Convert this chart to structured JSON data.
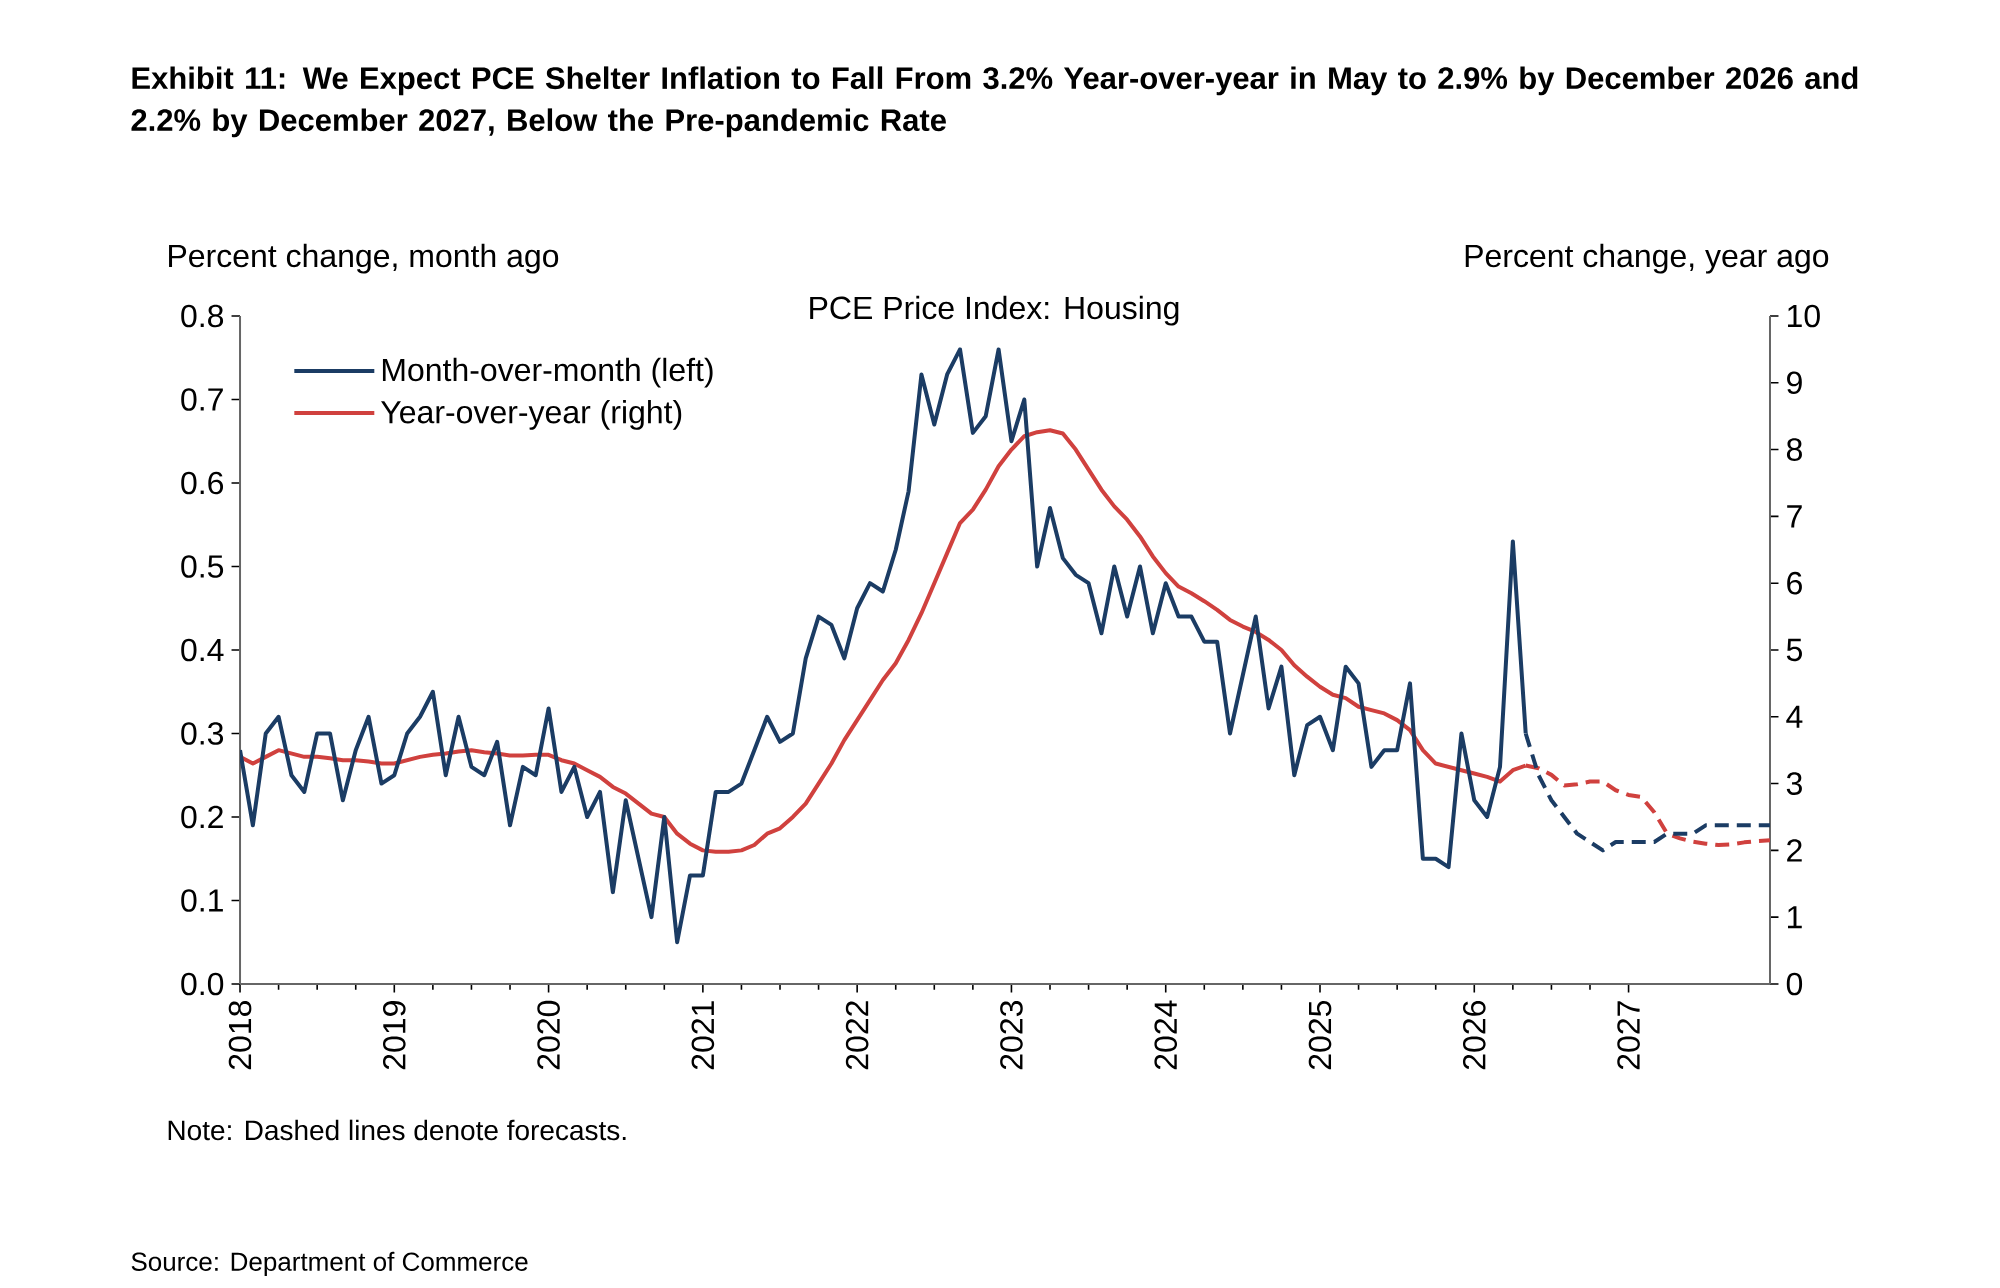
{
  "chart_data": {
    "type": "line",
    "title": "**Exhibit 11: We Expect PCE Shelter Inflation to Fall From 3.2% Year-over-year in May to 2.9% by December 2026 and 2.2% by December 2027, Below the Pre-pandemic Rate**",
    "subtitle": "PCE Price Index: Housing",
    "ylabel": "Percent change, month ago",
    "y2label": "Percent change, year ago",
    "annotations": [
      "Note: Dashed lines denote forecasts.",
      "Source: Department of Commerce"
    ],
    "xlim": [
      "2018-01",
      "2027-12"
    ],
    "xticks": [
      "2018",
      "2019",
      "2020",
      "2021",
      "2022",
      "2023",
      "2024",
      "2025",
      "2026",
      "2027"
    ],
    "ylim": [
      0,
      0.8
    ],
    "yticks": [
      {
        "value": 0,
        "label": "0.0"
      },
      0.1,
      0.2,
      0.3,
      0.4,
      0.5,
      0.6,
      0.7,
      0.8
    ],
    "y2lim": [
      0,
      10
    ],
    "y2ticks": [
      0,
      1,
      2,
      3,
      4,
      5,
      6,
      7,
      8,
      9,
      10
    ],
    "legend": "top left",
    "series": [
      {
        "name": "Month-over-month (left)",
        "color": "#1b3c64",
        "line_style": "solid",
        "x": [
          "2018-01",
          "2018-02",
          "2018-03",
          "2018-04",
          "2018-05",
          "2018-06",
          "2018-07",
          "2018-08",
          "2018-09",
          "2018-10",
          "2018-11",
          "2018-12",
          "2019-01",
          "2019-02",
          "2019-03",
          "2019-04",
          "2019-05",
          "2019-06",
          "2019-07",
          "2019-08",
          "2019-09",
          "2019-10",
          "2019-11",
          "2019-12",
          "2020-01",
          "2020-02",
          "2020-03",
          "2020-04",
          "2020-05",
          "2020-06",
          "2020-07",
          "2020-08",
          "2020-09",
          "2020-10",
          "2020-11",
          "2020-12",
          "2021-01",
          "2021-02",
          "2021-03",
          "2021-04",
          "2021-05",
          "2021-06",
          "2021-07",
          "2021-08",
          "2021-09",
          "2021-10",
          "2021-11",
          "2021-12",
          "2022-01",
          "2022-02",
          "2022-03",
          "2022-04",
          "2022-05",
          "2022-06",
          "2022-07",
          "2022-08",
          "2022-09",
          "2022-10",
          "2022-11",
          "2022-12",
          "2023-01",
          "2023-02",
          "2023-03",
          "2023-04",
          "2023-05",
          "2023-06",
          "2023-07",
          "2023-08",
          "2023-09",
          "2023-10",
          "2023-11",
          "2023-12",
          "2024-01",
          "2024-02",
          "2024-03",
          "2024-04",
          "2024-05",
          "2024-06",
          "2024-07",
          "2024-08",
          "2024-09",
          "2024-10",
          "2024-11",
          "2024-12",
          "2025-01",
          "2025-02",
          "2025-03",
          "2025-04",
          "2025-05",
          "2025-06",
          "2025-07",
          "2025-08",
          "2025-09",
          "2025-10",
          "2025-11",
          "2025-12",
          "2026-01",
          "2026-02",
          "2026-03",
          "2026-04",
          "2026-05"
        ],
        "values": [
          0.28,
          0.19,
          0.3,
          0.32,
          0.25,
          0.23,
          0.3,
          0.3,
          0.22,
          0.28,
          0.32,
          0.24,
          0.25,
          0.3,
          0.32,
          0.35,
          0.25,
          0.32,
          0.26,
          0.25,
          0.29,
          0.19,
          0.26,
          0.25,
          0.33,
          0.23,
          0.26,
          0.2,
          0.23,
          0.11,
          0.22,
          0.15,
          0.08,
          0.2,
          0.05,
          0.13,
          0.13,
          0.23,
          0.23,
          0.24,
          0.28,
          0.32,
          0.29,
          0.3,
          0.39,
          0.44,
          0.43,
          0.39,
          0.45,
          0.48,
          0.47,
          0.52,
          0.59,
          0.73,
          0.67,
          0.73,
          0.76,
          0.66,
          0.68,
          0.76,
          0.65,
          0.7,
          0.5,
          0.57,
          0.51,
          0.49,
          0.48,
          0.42,
          0.5,
          0.44,
          0.5,
          0.42,
          0.48,
          0.44,
          0.44,
          0.41,
          0.41,
          0.3,
          0.37,
          0.44,
          0.33,
          0.38,
          0.25,
          0.31,
          0.32,
          0.28,
          0.38,
          0.36,
          0.26,
          0.28,
          0.28,
          0.36,
          0.15,
          0.15,
          0.14,
          0.3,
          0.22,
          0.2,
          0.26,
          0.53,
          0.3
        ]
      },
      {
        "name": "Year-over-year (right)",
        "color": "#d0413e",
        "line_style": "solid",
        "axis": "y2",
        "x": [
          "2018-01",
          "2018-02",
          "2018-03",
          "2018-04",
          "2018-05",
          "2018-06",
          "2018-07",
          "2018-08",
          "2018-09",
          "2018-10",
          "2018-11",
          "2018-12",
          "2019-01",
          "2019-02",
          "2019-03",
          "2019-04",
          "2019-05",
          "2019-06",
          "2019-07",
          "2019-08",
          "2019-09",
          "2019-10",
          "2019-11",
          "2019-12",
          "2020-01",
          "2020-02",
          "2020-03",
          "2020-04",
          "2020-05",
          "2020-06",
          "2020-07",
          "2020-08",
          "2020-09",
          "2020-10",
          "2020-11",
          "2020-12",
          "2021-01",
          "2021-02",
          "2021-03",
          "2021-04",
          "2021-05",
          "2021-06",
          "2021-07",
          "2021-08",
          "2021-09",
          "2021-10",
          "2021-11",
          "2021-12",
          "2022-01",
          "2022-02",
          "2022-03",
          "2022-04",
          "2022-05",
          "2022-06",
          "2022-07",
          "2022-08",
          "2022-09",
          "2022-10",
          "2022-11",
          "2022-12",
          "2023-01",
          "2023-02",
          "2023-03",
          "2023-04",
          "2023-05",
          "2023-06",
          "2023-07",
          "2023-08",
          "2023-09",
          "2023-10",
          "2023-11",
          "2023-12",
          "2024-01",
          "2024-02",
          "2024-03",
          "2024-04",
          "2024-05",
          "2024-06",
          "2024-07",
          "2024-08",
          "2024-09",
          "2024-10",
          "2024-11",
          "2024-12",
          "2025-01",
          "2025-02",
          "2025-03",
          "2025-04",
          "2025-05",
          "2025-06",
          "2025-07",
          "2025-08",
          "2025-09",
          "2025-10",
          "2025-11",
          "2025-12",
          "2026-01",
          "2026-02",
          "2026-03",
          "2026-04",
          "2026-05"
        ],
        "values": [
          3.4,
          3.3,
          3.4,
          3.5,
          3.45,
          3.4,
          3.4,
          3.38,
          3.35,
          3.35,
          3.33,
          3.3,
          3.3,
          3.35,
          3.4,
          3.43,
          3.45,
          3.48,
          3.5,
          3.47,
          3.45,
          3.42,
          3.42,
          3.43,
          3.43,
          3.35,
          3.3,
          3.2,
          3.1,
          2.95,
          2.85,
          2.7,
          2.55,
          2.5,
          2.25,
          2.1,
          2.0,
          1.98,
          1.98,
          2.0,
          2.08,
          2.25,
          2.33,
          2.5,
          2.7,
          3.0,
          3.3,
          3.65,
          3.95,
          4.25,
          4.55,
          4.8,
          5.15,
          5.55,
          6.0,
          6.45,
          6.9,
          7.1,
          7.4,
          7.75,
          8.0,
          8.2,
          8.26,
          8.29,
          8.24,
          8.0,
          7.7,
          7.4,
          7.15,
          6.95,
          6.7,
          6.4,
          6.15,
          5.95,
          5.85,
          5.73,
          5.6,
          5.45,
          5.35,
          5.27,
          5.15,
          5.0,
          4.77,
          4.6,
          4.45,
          4.33,
          4.28,
          4.15,
          4.1,
          4.05,
          3.95,
          3.8,
          3.5,
          3.3,
          3.25,
          3.2,
          3.15,
          3.1,
          3.03,
          3.2,
          3.27
        ]
      },
      {
        "color": "#1b3c64",
        "line_style": "dashed",
        "x": [
          "2026-05",
          "2026-06",
          "2026-07",
          "2026-08",
          "2026-09",
          "2026-10",
          "2026-11",
          "2026-12",
          "2027-01",
          "2027-02",
          "2027-03",
          "2027-04",
          "2027-05",
          "2027-06",
          "2027-07",
          "2027-08",
          "2027-09",
          "2027-10",
          "2027-11",
          "2027-12"
        ],
        "values": [
          0.3,
          0.25,
          0.22,
          0.2,
          0.18,
          0.17,
          0.16,
          0.17,
          0.17,
          0.17,
          0.17,
          0.18,
          0.18,
          0.18,
          0.19,
          0.19,
          0.19,
          0.19,
          0.19,
          0.19
        ]
      },
      {
        "color": "#d0413e",
        "line_style": "dashed",
        "axis": "y2",
        "x": [
          "2026-05",
          "2026-06",
          "2026-07",
          "2026-08",
          "2026-09",
          "2026-10",
          "2026-11",
          "2026-12",
          "2027-01",
          "2027-02",
          "2027-03",
          "2027-04",
          "2027-05",
          "2027-06",
          "2027-07",
          "2027-08",
          "2027-09",
          "2027-10",
          "2027-11",
          "2027-12"
        ],
        "values": [
          3.27,
          3.23,
          3.13,
          2.97,
          2.99,
          3.03,
          3.03,
          2.9,
          2.83,
          2.8,
          2.57,
          2.25,
          2.18,
          2.13,
          2.1,
          2.08,
          2.09,
          2.12,
          2.14,
          2.15
        ]
      }
    ]
  }
}
